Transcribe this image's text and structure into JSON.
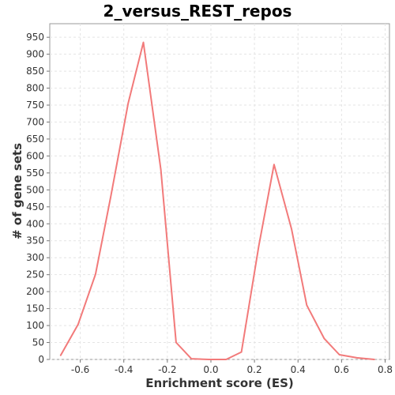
{
  "chart_data": {
    "type": "line",
    "title": "2_versus_REST_repos",
    "xlabel": "Enrichment score (ES)",
    "ylabel": "# of gene sets",
    "xlim": [
      -0.74,
      0.82
    ],
    "ylim": [
      0,
      990
    ],
    "x_ticks": [
      -0.6,
      -0.4,
      -0.2,
      0.0,
      0.2,
      0.4,
      0.6,
      0.8
    ],
    "x_tick_labels": [
      "-0.6",
      "-0.4",
      "-0.2",
      "0.0",
      "0.2",
      "0.4",
      "0.6",
      "0.8"
    ],
    "y_ticks": [
      0,
      50,
      100,
      150,
      200,
      250,
      300,
      350,
      400,
      450,
      500,
      550,
      600,
      650,
      700,
      750,
      800,
      850,
      900,
      950
    ],
    "y_tick_labels": [
      "0",
      "50",
      "100",
      "150",
      "200",
      "250",
      "300",
      "350",
      "400",
      "450",
      "500",
      "550",
      "600",
      "650",
      "700",
      "750",
      "800",
      "850",
      "900",
      "950"
    ],
    "grid": true,
    "legend": "none",
    "line_color": "#F27A7A",
    "series": [
      {
        "x": [
          -0.69,
          -0.61,
          -0.53,
          -0.46,
          -0.38,
          -0.31,
          -0.23,
          -0.16,
          -0.09,
          -0.01,
          0.07,
          0.14,
          0.22,
          0.29,
          0.37,
          0.44,
          0.52,
          0.59,
          0.67,
          0.75
        ],
        "y": [
          12,
          103,
          251,
          480,
          755,
          935,
          560,
          50,
          2,
          0,
          0,
          22,
          335,
          575,
          385,
          160,
          62,
          14,
          5,
          0
        ]
      }
    ]
  }
}
